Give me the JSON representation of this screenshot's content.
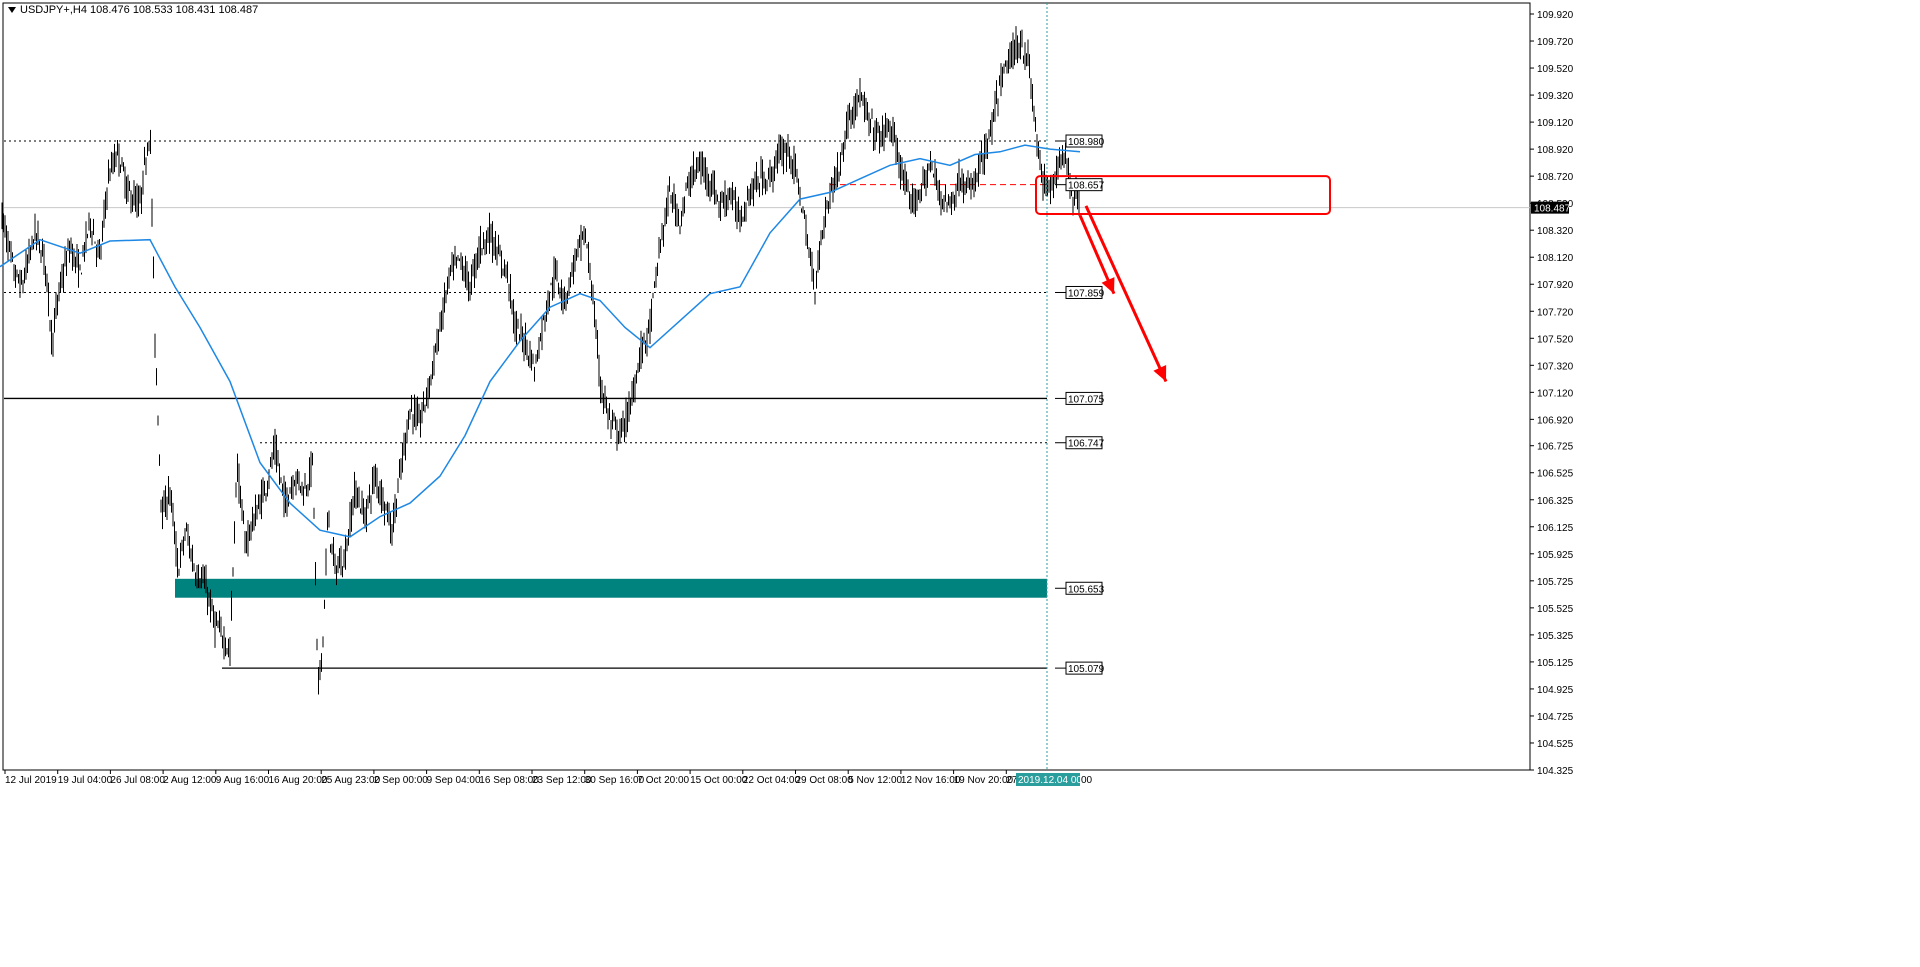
{
  "header": {
    "symbol_label": "USDJPY+,H4  108.476 108.533 108.431 108.487"
  },
  "colors": {
    "background": "#ffffff",
    "candle": "#000000",
    "moving_average": "#1e88e5",
    "support_zone": "#00827f",
    "highlight_box": "#ff0000",
    "arrow": "#ff0000",
    "crosshair": "#2a9d9d",
    "current_price_line": "#c8c8c8"
  },
  "chart_data": {
    "type": "candlestick",
    "symbol": "USDJPY+",
    "timeframe": "H4",
    "ohlc": {
      "open": 108.476,
      "high": 108.533,
      "low": 108.431,
      "close": 108.487
    },
    "ylim": [
      104.325,
      109.92
    ],
    "y_ticks": [
      "109.920",
      "109.720",
      "109.520",
      "109.320",
      "109.120",
      "108.920",
      "108.720",
      "108.520",
      "108.320",
      "108.120",
      "107.920",
      "107.720",
      "107.520",
      "107.320",
      "107.120",
      "106.920",
      "106.725",
      "106.525",
      "106.325",
      "106.125",
      "105.925",
      "105.725",
      "105.525",
      "105.325",
      "105.125",
      "104.925",
      "104.725",
      "104.525",
      "104.325"
    ],
    "x_ticks": [
      "12 Jul 2019",
      "19 Jul 04:00",
      "26 Jul 08:00",
      "2 Aug 12:00",
      "9 Aug 16:00",
      "16 Aug 20:00",
      "25 Aug 23:00",
      "2 Sep 00:00",
      "9 Sep 04:00",
      "16 Sep 08:00",
      "23 Sep 12:00",
      "30 Sep 16:00",
      "7 Oct 20:00",
      "15 Oct 00:00",
      "22 Oct 04:00",
      "29 Oct 08:00",
      "5 Nov 12:00",
      "12 Nov 16:00",
      "19 Nov 20:00",
      "27 No"
    ],
    "cursor_time_label": "2019.12.04 00:00",
    "cursor_time_suffix": "00",
    "current_price": "108.487",
    "price_path": [
      [
        0,
        108.5
      ],
      [
        14,
        108.0
      ],
      [
        22,
        107.9
      ],
      [
        35,
        108.3
      ],
      [
        45,
        108.1
      ],
      [
        52,
        107.5
      ],
      [
        60,
        107.9
      ],
      [
        70,
        108.2
      ],
      [
        80,
        108.0
      ],
      [
        90,
        108.4
      ],
      [
        100,
        108.1
      ],
      [
        108,
        108.7
      ],
      [
        118,
        108.9
      ],
      [
        128,
        108.6
      ],
      [
        140,
        108.5
      ],
      [
        150,
        109.1
      ],
      [
        155,
        107.5
      ],
      [
        162,
        106.2
      ],
      [
        170,
        106.4
      ],
      [
        178,
        105.8
      ],
      [
        186,
        106.1
      ],
      [
        195,
        105.8
      ],
      [
        205,
        105.7
      ],
      [
        215,
        105.4
      ],
      [
        224,
        105.3
      ],
      [
        230,
        105.2
      ],
      [
        237,
        106.6
      ],
      [
        245,
        106.0
      ],
      [
        255,
        106.2
      ],
      [
        265,
        106.4
      ],
      [
        275,
        106.7
      ],
      [
        285,
        106.3
      ],
      [
        295,
        106.5
      ],
      [
        305,
        106.4
      ],
      [
        313,
        106.6
      ],
      [
        318,
        104.9
      ],
      [
        323,
        105.3
      ],
      [
        328,
        106.2
      ],
      [
        335,
        105.8
      ],
      [
        345,
        105.9
      ],
      [
        355,
        106.4
      ],
      [
        365,
        106.2
      ],
      [
        375,
        106.5
      ],
      [
        385,
        106.3
      ],
      [
        392,
        106.1
      ],
      [
        400,
        106.5
      ],
      [
        410,
        107.0
      ],
      [
        420,
        106.9
      ],
      [
        430,
        107.2
      ],
      [
        440,
        107.6
      ],
      [
        450,
        108.0
      ],
      [
        460,
        108.1
      ],
      [
        470,
        107.9
      ],
      [
        480,
        108.2
      ],
      [
        490,
        108.3
      ],
      [
        500,
        108.1
      ],
      [
        508,
        108.0
      ],
      [
        515,
        107.6
      ],
      [
        525,
        107.5
      ],
      [
        535,
        107.3
      ],
      [
        545,
        107.7
      ],
      [
        555,
        108.0
      ],
      [
        565,
        107.8
      ],
      [
        575,
        108.1
      ],
      [
        585,
        108.3
      ],
      [
        592,
        107.9
      ],
      [
        600,
        107.2
      ],
      [
        610,
        106.9
      ],
      [
        620,
        106.8
      ],
      [
        630,
        107.0
      ],
      [
        640,
        107.4
      ],
      [
        650,
        107.6
      ],
      [
        660,
        108.2
      ],
      [
        670,
        108.6
      ],
      [
        680,
        108.4
      ],
      [
        690,
        108.7
      ],
      [
        700,
        108.8
      ],
      [
        710,
        108.7
      ],
      [
        720,
        108.5
      ],
      [
        730,
        108.6
      ],
      [
        740,
        108.4
      ],
      [
        750,
        108.6
      ],
      [
        760,
        108.7
      ],
      [
        770,
        108.7
      ],
      [
        780,
        108.9
      ],
      [
        790,
        108.9
      ],
      [
        800,
        108.6
      ],
      [
        808,
        108.2
      ],
      [
        815,
        107.9
      ],
      [
        822,
        108.3
      ],
      [
        830,
        108.6
      ],
      [
        840,
        108.8
      ],
      [
        850,
        109.2
      ],
      [
        860,
        109.3
      ],
      [
        870,
        109.1
      ],
      [
        880,
        109.0
      ],
      [
        890,
        109.1
      ],
      [
        900,
        108.8
      ],
      [
        910,
        108.5
      ],
      [
        920,
        108.6
      ],
      [
        930,
        108.8
      ],
      [
        940,
        108.6
      ],
      [
        950,
        108.5
      ],
      [
        960,
        108.7
      ],
      [
        970,
        108.6
      ],
      [
        980,
        108.8
      ],
      [
        990,
        109.0
      ],
      [
        1000,
        109.4
      ],
      [
        1010,
        109.6
      ],
      [
        1020,
        109.7
      ],
      [
        1028,
        109.6
      ],
      [
        1035,
        109.1
      ],
      [
        1042,
        108.7
      ],
      [
        1050,
        108.6
      ],
      [
        1058,
        108.8
      ],
      [
        1065,
        108.9
      ],
      [
        1072,
        108.6
      ],
      [
        1080,
        108.5
      ]
    ],
    "moving_average": [
      [
        0,
        108.05
      ],
      [
        40,
        108.25
      ],
      [
        80,
        108.15
      ],
      [
        110,
        108.24
      ],
      [
        150,
        108.25
      ],
      [
        175,
        107.9
      ],
      [
        200,
        107.6
      ],
      [
        230,
        107.2
      ],
      [
        260,
        106.6
      ],
      [
        290,
        106.3
      ],
      [
        320,
        106.1
      ],
      [
        350,
        106.05
      ],
      [
        380,
        106.2
      ],
      [
        410,
        106.3
      ],
      [
        440,
        106.5
      ],
      [
        465,
        106.8
      ],
      [
        490,
        107.2
      ],
      [
        520,
        107.5
      ],
      [
        550,
        107.75
      ],
      [
        580,
        107.85
      ],
      [
        600,
        107.8
      ],
      [
        625,
        107.6
      ],
      [
        650,
        107.45
      ],
      [
        680,
        107.65
      ],
      [
        710,
        107.85
      ],
      [
        740,
        107.9
      ],
      [
        770,
        108.3
      ],
      [
        800,
        108.55
      ],
      [
        830,
        108.6
      ],
      [
        860,
        108.7
      ],
      [
        890,
        108.8
      ],
      [
        920,
        108.85
      ],
      [
        950,
        108.8
      ],
      [
        975,
        108.88
      ],
      [
        1000,
        108.9
      ],
      [
        1025,
        108.95
      ],
      [
        1050,
        108.92
      ],
      [
        1080,
        108.9
      ]
    ],
    "levels": [
      {
        "label": "108.980",
        "value": 108.98,
        "style": "dotted",
        "x_end": 1047
      },
      {
        "label": "108.657",
        "value": 108.657,
        "style": "dashed-red",
        "x_start": 830,
        "x_end": 1047
      },
      {
        "label": "107.859",
        "value": 107.859,
        "style": "dotted",
        "x_end": 1047
      },
      {
        "label": "107.075",
        "value": 107.075,
        "style": "solid",
        "x_end": 1047
      },
      {
        "label": "106.747",
        "value": 106.747,
        "style": "dotted",
        "x_start": 260,
        "x_end": 1047
      },
      {
        "label": "105.079",
        "value": 105.079,
        "style": "solid",
        "x_start": 222,
        "x_end": 1047
      }
    ],
    "support_zone": {
      "label": "105.653",
      "high": 105.74,
      "low": 105.6,
      "x_start": 175,
      "x_end": 1047
    },
    "highlight_box": {
      "price_top": 108.72,
      "price_bottom": 108.44,
      "x_start": 1036,
      "x_end": 1330
    },
    "arrows": [
      {
        "from": [
          1080,
          108.43
        ],
        "to": [
          1114,
          107.85
        ]
      },
      {
        "from": [
          1086,
          108.5
        ],
        "to": [
          1166,
          107.2
        ]
      }
    ]
  }
}
